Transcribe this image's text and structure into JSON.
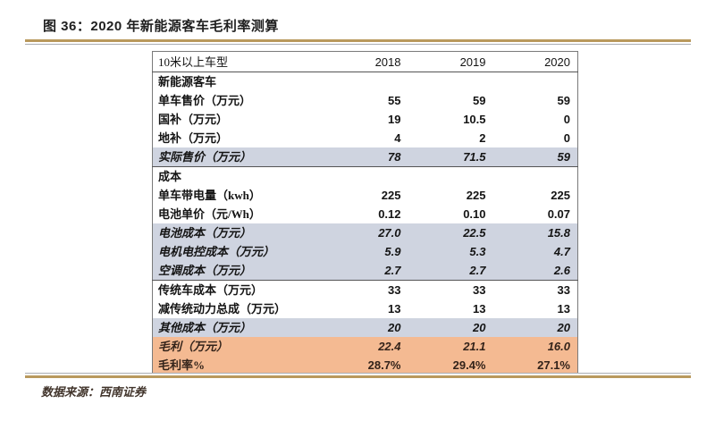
{
  "figure": {
    "title": "图 36：2020 年新能源客车毛利率测算",
    "source": "数据来源：西南证券"
  },
  "colors": {
    "highlight_gray": "#cfd4e0",
    "highlight_orange": "#f4ba92",
    "rule_gold": "#b9995d",
    "table_border": "#7a7a7a"
  },
  "chart_data": {
    "type": "table",
    "title": "图 36：2020 年新能源客车毛利率测算",
    "columns": [
      "10米以上车型",
      "2018",
      "2019",
      "2020"
    ],
    "rows": [
      {
        "label": "新能源客车",
        "values": [
          "",
          "",
          ""
        ],
        "style": "section"
      },
      {
        "label": "单车售价（万元）",
        "values": [
          "55",
          "59",
          "59"
        ],
        "style": "normal"
      },
      {
        "label": "国补（万元）",
        "values": [
          "19",
          "10.5",
          "0"
        ],
        "style": "normal"
      },
      {
        "label": "地补（万元）",
        "values": [
          "4",
          "2",
          "0"
        ],
        "style": "normal"
      },
      {
        "label": "实际售价（万元）",
        "values": [
          "78",
          "71.5",
          "59"
        ],
        "style": "gray",
        "divider": true
      },
      {
        "label": "成本",
        "values": [
          "",
          "",
          ""
        ],
        "style": "section"
      },
      {
        "label": "单车带电量（kwh）",
        "values": [
          "225",
          "225",
          "225"
        ],
        "style": "normal"
      },
      {
        "label": "电池单价（元/Wh）",
        "values": [
          "0.12",
          "0.10",
          "0.07"
        ],
        "style": "normal"
      },
      {
        "label": "电池成本（万元）",
        "values": [
          "27.0",
          "22.5",
          "15.8"
        ],
        "style": "gray"
      },
      {
        "label": "电机电控成本（万元）",
        "values": [
          "5.9",
          "5.3",
          "4.7"
        ],
        "style": "gray"
      },
      {
        "label": "空调成本（万元）",
        "values": [
          "2.7",
          "2.7",
          "2.6"
        ],
        "style": "gray",
        "divider": true
      },
      {
        "label": "传统车成本（万元）",
        "values": [
          "33",
          "33",
          "33"
        ],
        "style": "normal"
      },
      {
        "label": "减传统动力总成（万元）",
        "values": [
          "13",
          "13",
          "13"
        ],
        "style": "normal"
      },
      {
        "label": "其他成本（万元）",
        "values": [
          "20",
          "20",
          "20"
        ],
        "style": "gray"
      },
      {
        "label": "毛利（万元）",
        "values": [
          "22.4",
          "21.1",
          "16.0"
        ],
        "style": "orange"
      },
      {
        "label": "毛利率%",
        "values": [
          "28.7%",
          "29.4%",
          "27.1%"
        ],
        "style": "orange-upright"
      }
    ]
  },
  "table": {
    "header": {
      "label": "10米以上车型",
      "years": [
        "2018",
        "2019",
        "2020"
      ]
    }
  }
}
